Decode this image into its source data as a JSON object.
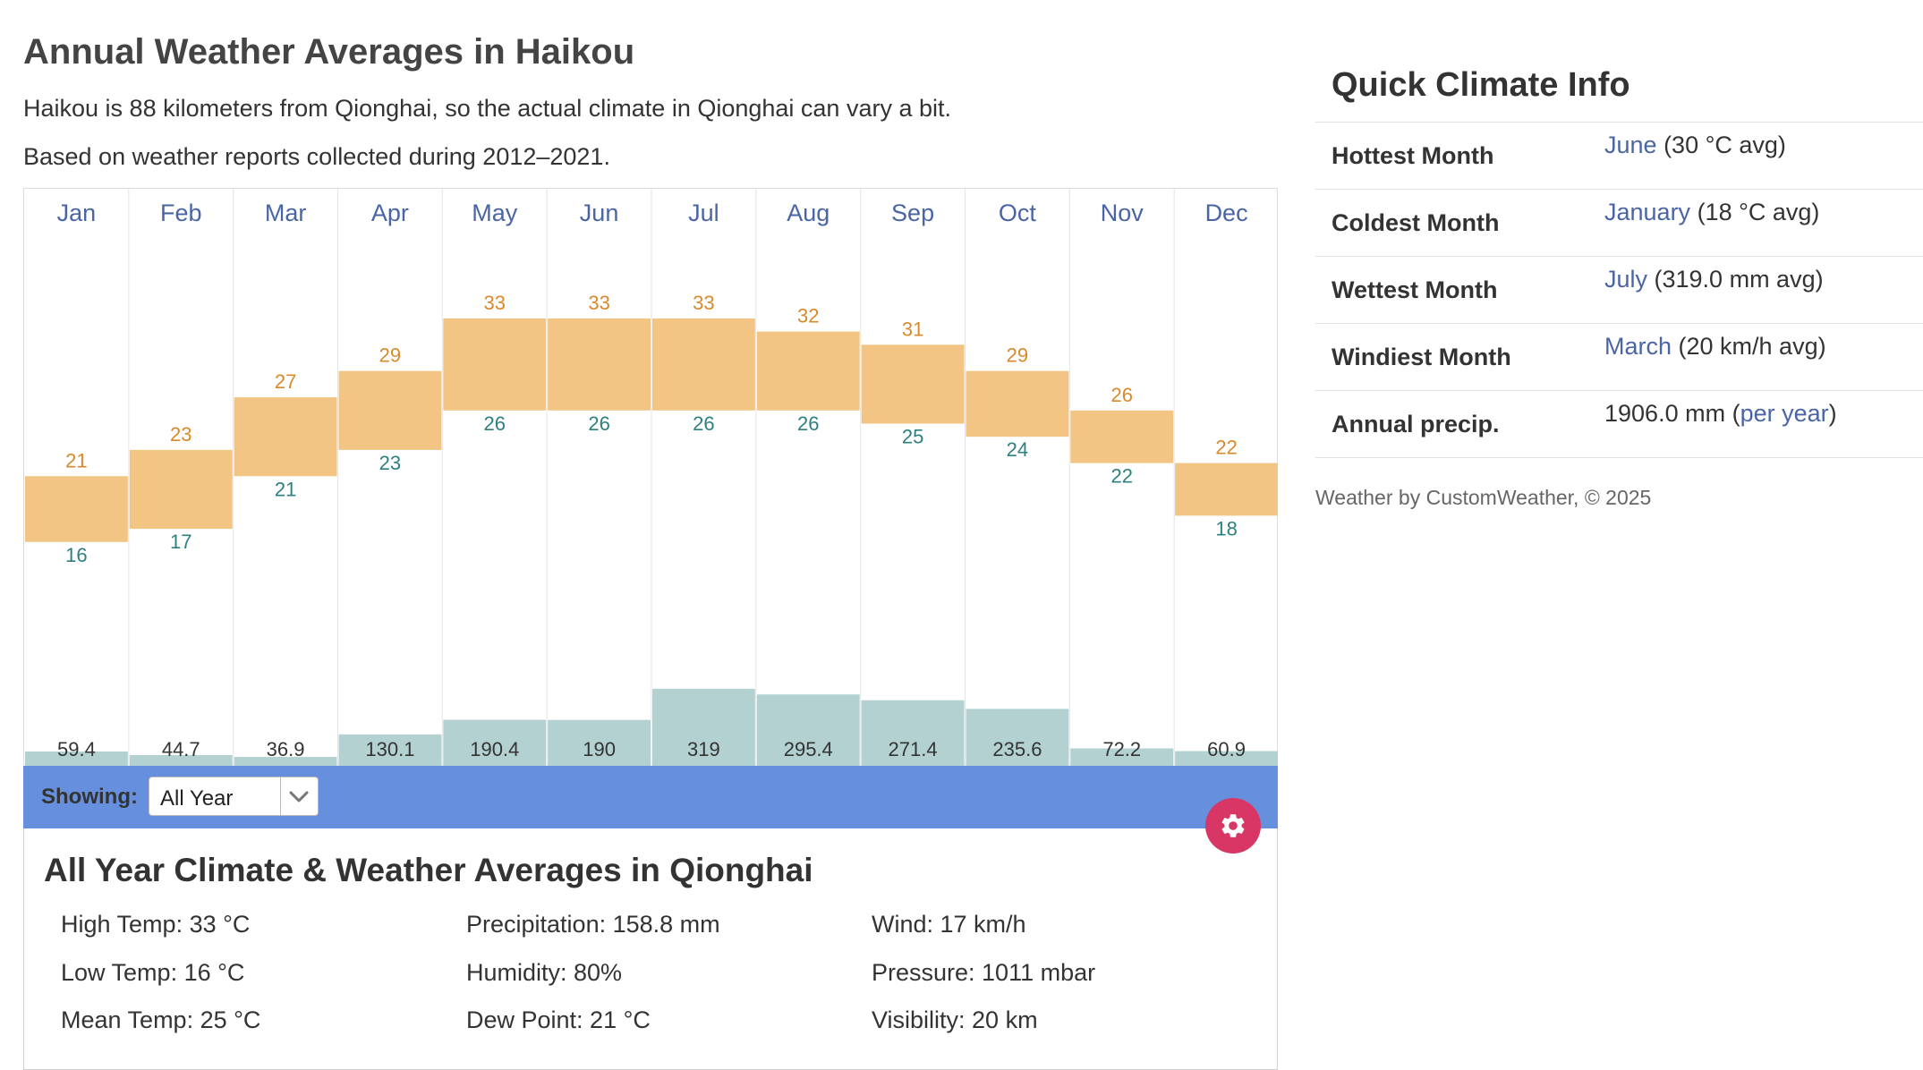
{
  "page": {
    "title": "Annual Weather Averages in Haikou",
    "intro_1": "Haikou is 88 kilometers from Qionghai, so the actual climate in Qionghai can vary a bit.",
    "intro_2": "Based on weather reports collected during 2012–2021."
  },
  "chart_data": {
    "type": "bar",
    "categories": [
      "Jan",
      "Feb",
      "Mar",
      "Apr",
      "May",
      "Jun",
      "Jul",
      "Aug",
      "Sep",
      "Oct",
      "Nov",
      "Dec"
    ],
    "series": [
      {
        "values": [
          21,
          23,
          27,
          29,
          33,
          33,
          33,
          32,
          31,
          29,
          26,
          22
        ]
      },
      {
        "values": [
          16,
          17,
          21,
          23,
          26,
          26,
          26,
          26,
          25,
          24,
          22,
          18
        ]
      },
      {
        "values": [
          59.4,
          44.7,
          36.9,
          130.1,
          190.4,
          190,
          319,
          295.4,
          271.4,
          235.6,
          72.2,
          60.9
        ]
      }
    ],
    "labels": {
      "high": [
        "21",
        "23",
        "27",
        "29",
        "33",
        "33",
        "33",
        "32",
        "31",
        "29",
        "26",
        "22"
      ],
      "low": [
        "16",
        "17",
        "21",
        "23",
        "26",
        "26",
        "26",
        "26",
        "25",
        "24",
        "22",
        "18"
      ],
      "precip": [
        "59.4",
        "44.7",
        "36.9",
        "130.1",
        "190.4",
        "190",
        "319",
        "295.4",
        "271.4",
        "235.6",
        "72.2",
        "60.9"
      ]
    },
    "colors": {
      "temp_bar": "#f2c584",
      "high_text": "#d9892b",
      "low_text": "#2e8080",
      "precip_bar": "#b3d1d1",
      "month_text": "#4a65a5"
    }
  },
  "controls": {
    "showing_label": "Showing:",
    "period_value": "All Year"
  },
  "details": {
    "title": "All Year Climate & Weather Averages in Qionghai",
    "high": "High Temp: 33 °C",
    "low": "Low Temp: 16 °C",
    "mean": "Mean Temp: 25 °C",
    "precip": "Precipitation: 158.8 mm",
    "humidity": "Humidity: 80%",
    "dew": "Dew Point: 21 °C",
    "wind": "Wind: 17 km/h",
    "pressure": "Pressure: 1011 mbar",
    "visibility": "Visibility: 20 km"
  },
  "quick": {
    "title": "Quick Climate Info",
    "rows": [
      {
        "label": "Hottest Month",
        "link": "June",
        "rest": " (30 °C avg)"
      },
      {
        "label": "Coldest Month",
        "link": "January",
        "rest": " (18 °C avg)"
      },
      {
        "label": "Wettest Month",
        "link": "July",
        "rest": " (319.0 mm avg)"
      },
      {
        "label": "Windiest Month",
        "link": "March",
        "rest": " (20 km/h avg)"
      }
    ],
    "annual": {
      "label": "Annual precip.",
      "value": "1906.0 mm (",
      "link": "per year",
      "close": ")"
    },
    "footer": "Weather by CustomWeather, © 2025"
  }
}
